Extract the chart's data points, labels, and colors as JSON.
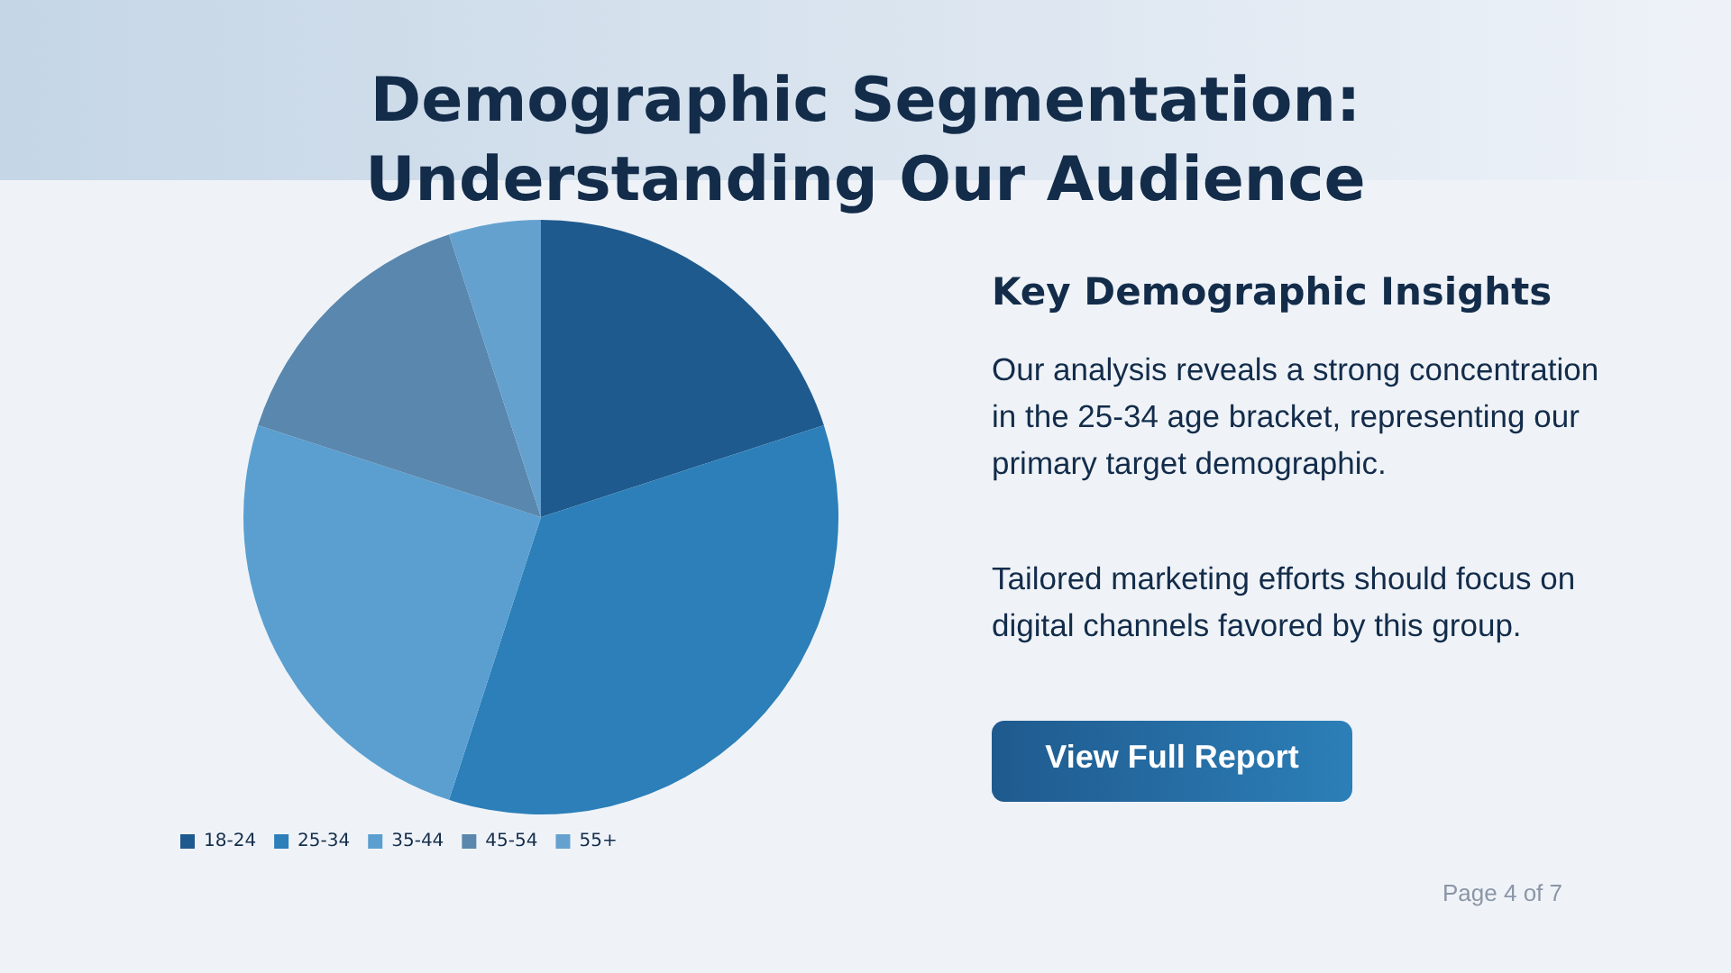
{
  "chart_data": {
    "type": "pie",
    "title": "Demographic Segmentation: Understanding Our Audience",
    "categories": [
      "18-24",
      "25-34",
      "35-44",
      "45-54",
      "55+"
    ],
    "values": [
      20,
      35,
      25,
      15,
      5
    ],
    "colors": [
      "#1f5a8e",
      "#2c7fb8",
      "#5a9fd0",
      "#5a87ad",
      "#64a1cf"
    ],
    "legend": "bottom",
    "annotations": [
      "Key Demographic Insights",
      "Our analysis reveals a strong concentration in the 25-34 age bracket, representing our primary target demographic.",
      "Tailored marketing efforts should focus on digital channels favored by this group.",
      "View Full Report",
      "Page 4 of 7"
    ]
  }
}
